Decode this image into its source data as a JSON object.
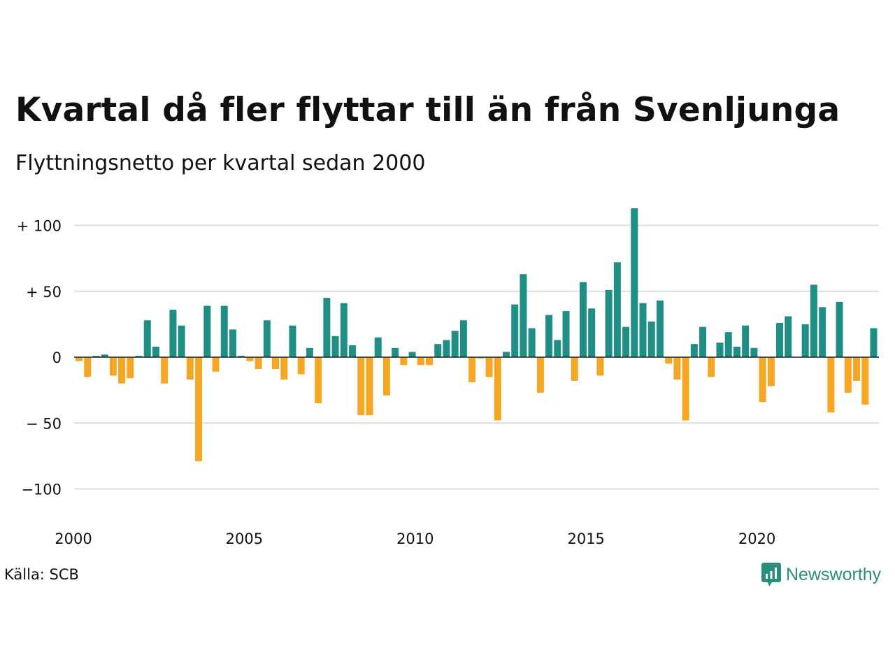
{
  "title": "Kvartal då fler flyttar till än från Svenljunga",
  "subtitle": "Flyttningsnetto per kvartal sedan 2000",
  "source": "Källa: SCB",
  "brand": "Newsworthy",
  "colors": {
    "positive": "#1f8f85",
    "negative": "#f5a623",
    "grid": "#dddddd",
    "brand": "#2a8e7f"
  },
  "chart_data": {
    "type": "bar",
    "x_start": 2000,
    "periods_per_year": 4,
    "values": [
      -3,
      -15,
      1,
      2,
      -14,
      -20,
      -16,
      1,
      28,
      8,
      -20,
      36,
      24,
      -17,
      -79,
      39,
      -11,
      39,
      21,
      1,
      -3,
      -9,
      28,
      -9,
      -17,
      24,
      -13,
      7,
      -35,
      45,
      16,
      41,
      9,
      -44,
      -44,
      15,
      -29,
      7,
      -6,
      4,
      -6,
      -6,
      10,
      13,
      20,
      28,
      -19,
      -1,
      -15,
      -48,
      4,
      40,
      63,
      22,
      -27,
      32,
      13,
      35,
      -18,
      57,
      37,
      -14,
      51,
      72,
      23,
      113,
      41,
      27,
      43,
      -5,
      -17,
      -48,
      10,
      23,
      -15,
      11,
      19,
      8,
      24,
      7,
      -34,
      -22,
      26,
      31,
      0,
      25,
      55,
      38,
      -42,
      42,
      -27,
      -18,
      -36,
      22
    ],
    "x_ticks": [
      "2000",
      "2005",
      "2010",
      "2015",
      "2020"
    ],
    "y_ticks": [
      {
        "value": 100,
        "label": "+ 100"
      },
      {
        "value": 50,
        "label": "+  50"
      },
      {
        "value": 0,
        "label": "0"
      },
      {
        "value": -50,
        "label": "− 50"
      },
      {
        "value": -100,
        "label": "−100"
      }
    ],
    "ylim": [
      -120,
      120
    ],
    "grid": true
  }
}
